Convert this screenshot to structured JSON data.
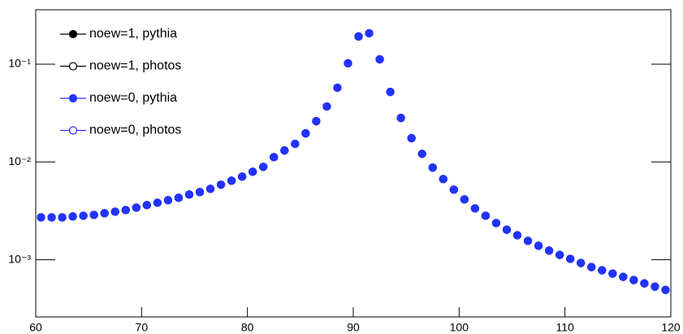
{
  "chart_data": {
    "type": "scatter",
    "x": [
      60.5,
      61.5,
      62.5,
      63.5,
      64.5,
      65.5,
      66.5,
      67.5,
      68.5,
      69.5,
      70.5,
      71.5,
      72.5,
      73.5,
      74.5,
      75.5,
      76.5,
      77.5,
      78.5,
      79.5,
      80.5,
      81.5,
      82.5,
      83.5,
      84.5,
      85.5,
      86.5,
      87.5,
      88.5,
      89.5,
      90.5,
      91.5,
      92.5,
      93.5,
      94.5,
      95.5,
      96.5,
      97.5,
      98.5,
      99.5,
      100.5,
      101.5,
      102.5,
      103.5,
      104.5,
      105.5,
      106.5,
      107.5,
      108.5,
      109.5,
      110.5,
      111.5,
      112.5,
      113.5,
      114.5,
      115.5,
      116.5,
      117.5,
      118.5,
      119.5
    ],
    "series": [
      {
        "name": "noew=1, pythia",
        "color": "#000000",
        "marker": "filled",
        "values": [
          0.00271,
          0.00271,
          0.00271,
          0.00277,
          0.00282,
          0.00287,
          0.00299,
          0.0031,
          0.00322,
          0.00341,
          0.00362,
          0.00383,
          0.00406,
          0.0043,
          0.00464,
          0.00492,
          0.00531,
          0.00585,
          0.00643,
          0.00708,
          0.00794,
          0.00891,
          0.0112,
          0.0131,
          0.0153,
          0.0196,
          0.0261,
          0.0369,
          0.0574,
          0.102,
          0.192,
          0.207,
          0.112,
          0.052,
          0.0282,
          0.0175,
          0.0121,
          0.00875,
          0.00668,
          0.00521,
          0.00414,
          0.00335,
          0.00282,
          0.00237,
          0.00203,
          0.00178,
          0.00156,
          0.00139,
          0.00124,
          0.00112,
          0.00102,
          0.000926,
          0.000841,
          0.00078,
          0.000722,
          0.000668,
          0.00062,
          0.000573,
          0.000531,
          0.000492
        ]
      },
      {
        "name": "noew=1, photos",
        "color": "#000000",
        "marker": "open",
        "values": [
          0.00271,
          0.00271,
          0.00271,
          0.00277,
          0.00282,
          0.00287,
          0.00299,
          0.0031,
          0.00322,
          0.00341,
          0.00362,
          0.00383,
          0.00406,
          0.0043,
          0.00464,
          0.00492,
          0.00531,
          0.00585,
          0.00643,
          0.00708,
          0.00794,
          0.00891,
          0.0112,
          0.0131,
          0.0153,
          0.0196,
          0.0261,
          0.0369,
          0.0574,
          0.102,
          0.192,
          0.207,
          0.112,
          0.052,
          0.0282,
          0.0175,
          0.0121,
          0.00875,
          0.00668,
          0.00521,
          0.00414,
          0.00335,
          0.00282,
          0.00237,
          0.00203,
          0.00178,
          0.00156,
          0.00139,
          0.00124,
          0.00112,
          0.00102,
          0.000926,
          0.000841,
          0.00078,
          0.000722,
          0.000668,
          0.00062,
          0.000573,
          0.000531,
          0.000492
        ]
      },
      {
        "name": "noew=0, pythia",
        "color": "#2233ff",
        "marker": "filled",
        "values": [
          0.00271,
          0.00271,
          0.00271,
          0.00277,
          0.00282,
          0.00287,
          0.00299,
          0.0031,
          0.00322,
          0.00341,
          0.00362,
          0.00383,
          0.00406,
          0.0043,
          0.00464,
          0.00492,
          0.00531,
          0.00585,
          0.00643,
          0.00708,
          0.00794,
          0.00891,
          0.0112,
          0.0131,
          0.0153,
          0.0196,
          0.0261,
          0.0369,
          0.0574,
          0.102,
          0.192,
          0.207,
          0.112,
          0.052,
          0.0282,
          0.0175,
          0.0121,
          0.00875,
          0.00668,
          0.00521,
          0.00414,
          0.00335,
          0.00282,
          0.00237,
          0.00203,
          0.00178,
          0.00156,
          0.00139,
          0.00124,
          0.00112,
          0.00102,
          0.000926,
          0.000841,
          0.00078,
          0.000722,
          0.000668,
          0.00062,
          0.000573,
          0.000531,
          0.000492
        ]
      },
      {
        "name": "noew=0, photos",
        "color": "#2233ff",
        "marker": "open",
        "values": [
          0.00271,
          0.00271,
          0.00271,
          0.00277,
          0.00282,
          0.00287,
          0.00299,
          0.0031,
          0.00322,
          0.00341,
          0.00362,
          0.00383,
          0.00406,
          0.0043,
          0.00464,
          0.00492,
          0.00531,
          0.00585,
          0.00643,
          0.00708,
          0.00794,
          0.00891,
          0.0112,
          0.0131,
          0.0153,
          0.0196,
          0.0261,
          0.0369,
          0.0574,
          0.102,
          0.192,
          0.207,
          0.112,
          0.052,
          0.0282,
          0.0175,
          0.0121,
          0.00875,
          0.00668,
          0.00521,
          0.00414,
          0.00335,
          0.00282,
          0.00237,
          0.00203,
          0.00178,
          0.00156,
          0.00139,
          0.00124,
          0.00112,
          0.00102,
          0.000926,
          0.000841,
          0.00078,
          0.000722,
          0.000668,
          0.00062,
          0.000573,
          0.000531,
          0.000492
        ]
      }
    ],
    "xlim": [
      60,
      120
    ],
    "xticks": [
      60,
      70,
      80,
      90,
      100,
      110,
      120
    ],
    "ylim": [
      0.00026,
      0.36
    ],
    "ylog": true,
    "yticks": [
      {
        "value": 0.001,
        "label": "10⁻³"
      },
      {
        "value": 0.01,
        "label": "10⁻²"
      },
      {
        "value": 0.1,
        "label": "10⁻¹"
      }
    ],
    "legend": "upper left"
  }
}
